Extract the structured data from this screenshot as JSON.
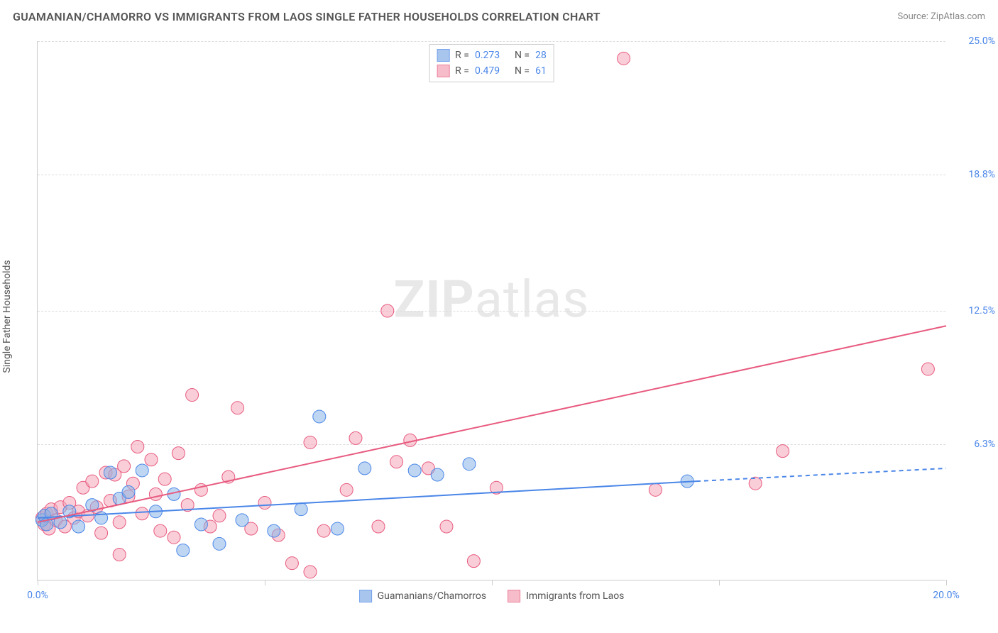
{
  "header": {
    "title": "GUAMANIAN/CHAMORRO VS IMMIGRANTS FROM LAOS SINGLE FATHER HOUSEHOLDS CORRELATION CHART",
    "source": "Source: ZipAtlas.com"
  },
  "chart": {
    "type": "scatter",
    "y_axis_label": "Single Father Households",
    "xlim": [
      0.0,
      20.0
    ],
    "ylim": [
      0.0,
      25.0
    ],
    "x_ticks": [
      0.0,
      5.0,
      10.0,
      15.0,
      20.0
    ],
    "x_tick_labels": [
      "0.0%",
      "",
      "",
      "",
      "20.0%"
    ],
    "y_ticks": [
      6.3,
      12.5,
      18.8,
      25.0
    ],
    "y_tick_labels": [
      "6.3%",
      "12.5%",
      "18.8%",
      "25.0%"
    ],
    "grid_color": "#dddddd",
    "axis_color": "#cccccc",
    "background_color": "#ffffff",
    "tick_label_color": "#4a86e8",
    "axis_label_color": "#555555",
    "title_color": "#555555",
    "watermark": {
      "text_bold": "ZIP",
      "text_rest": "atlas",
      "color": "#e8e8e8",
      "fontsize": 72
    }
  },
  "series": {
    "blue": {
      "label": "Guamanians/Chamorros",
      "R": "0.273",
      "N": "28",
      "fill": "#8bb4e8",
      "fill_opacity": 0.55,
      "stroke": "#4a86e8",
      "marker_radius": 9,
      "trend": {
        "x1": 0.0,
        "y1": 2.9,
        "x2": 14.5,
        "y2": 4.6,
        "x2_dash": 20.0,
        "y2_dash": 5.2,
        "color": "#4a86e8",
        "width": 2
      },
      "points": [
        [
          0.1,
          2.8
        ],
        [
          0.15,
          3.0
        ],
        [
          0.2,
          2.6
        ],
        [
          0.3,
          3.1
        ],
        [
          0.5,
          2.7
        ],
        [
          0.7,
          3.2
        ],
        [
          0.9,
          2.5
        ],
        [
          1.2,
          3.5
        ],
        [
          1.4,
          2.9
        ],
        [
          1.6,
          5.0
        ],
        [
          1.8,
          3.8
        ],
        [
          2.0,
          4.1
        ],
        [
          2.3,
          5.1
        ],
        [
          2.6,
          3.2
        ],
        [
          3.0,
          4.0
        ],
        [
          3.2,
          1.4
        ],
        [
          3.6,
          2.6
        ],
        [
          4.0,
          1.7
        ],
        [
          4.5,
          2.8
        ],
        [
          5.2,
          2.3
        ],
        [
          5.8,
          3.3
        ],
        [
          6.2,
          7.6
        ],
        [
          6.6,
          2.4
        ],
        [
          7.2,
          5.2
        ],
        [
          8.3,
          5.1
        ],
        [
          8.8,
          4.9
        ],
        [
          9.5,
          5.4
        ],
        [
          14.3,
          4.6
        ]
      ]
    },
    "pink": {
      "label": "Immigrants from Laos",
      "R": "0.479",
      "N": "61",
      "fill": "#f4a6b8",
      "fill_opacity": 0.55,
      "stroke": "#e85a7f",
      "marker_radius": 9,
      "trend": {
        "x1": 0.0,
        "y1": 2.7,
        "x2": 20.0,
        "y2": 11.8,
        "color": "#e85a7f",
        "width": 2
      },
      "points": [
        [
          0.1,
          2.9
        ],
        [
          0.15,
          2.6
        ],
        [
          0.2,
          3.1
        ],
        [
          0.25,
          2.4
        ],
        [
          0.3,
          3.3
        ],
        [
          0.4,
          2.8
        ],
        [
          0.5,
          3.4
        ],
        [
          0.6,
          2.5
        ],
        [
          0.7,
          3.6
        ],
        [
          0.8,
          2.9
        ],
        [
          0.9,
          3.2
        ],
        [
          1.0,
          4.3
        ],
        [
          1.1,
          3.0
        ],
        [
          1.2,
          4.6
        ],
        [
          1.3,
          3.4
        ],
        [
          1.4,
          2.2
        ],
        [
          1.5,
          5.0
        ],
        [
          1.6,
          3.7
        ],
        [
          1.7,
          4.9
        ],
        [
          1.8,
          2.7
        ],
        [
          1.8,
          1.2
        ],
        [
          1.9,
          5.3
        ],
        [
          2.0,
          3.9
        ],
        [
          2.1,
          4.5
        ],
        [
          2.2,
          6.2
        ],
        [
          2.3,
          3.1
        ],
        [
          2.5,
          5.6
        ],
        [
          2.6,
          4.0
        ],
        [
          2.7,
          2.3
        ],
        [
          2.8,
          4.7
        ],
        [
          3.0,
          2.0
        ],
        [
          3.1,
          5.9
        ],
        [
          3.3,
          3.5
        ],
        [
          3.4,
          8.6
        ],
        [
          3.6,
          4.2
        ],
        [
          3.8,
          2.5
        ],
        [
          4.0,
          3.0
        ],
        [
          4.2,
          4.8
        ],
        [
          4.4,
          8.0
        ],
        [
          4.7,
          2.4
        ],
        [
          5.0,
          3.6
        ],
        [
          5.3,
          2.1
        ],
        [
          5.6,
          0.8
        ],
        [
          6.0,
          6.4
        ],
        [
          6.0,
          0.4
        ],
        [
          6.3,
          2.3
        ],
        [
          6.8,
          4.2
        ],
        [
          7.0,
          6.6
        ],
        [
          7.5,
          2.5
        ],
        [
          7.7,
          12.5
        ],
        [
          7.9,
          5.5
        ],
        [
          8.2,
          6.5
        ],
        [
          8.6,
          5.2
        ],
        [
          9.0,
          2.5
        ],
        [
          9.6,
          0.9
        ],
        [
          10.1,
          4.3
        ],
        [
          12.9,
          24.2
        ],
        [
          13.6,
          4.2
        ],
        [
          15.8,
          4.5
        ],
        [
          16.4,
          6.0
        ],
        [
          19.6,
          9.8
        ]
      ]
    }
  },
  "legend_bottom": {
    "items": [
      {
        "swatch_fill": "#8bb4e8",
        "swatch_stroke": "#4a86e8",
        "label": "Guamanians/Chamorros"
      },
      {
        "swatch_fill": "#f4a6b8",
        "swatch_stroke": "#e85a7f",
        "label": "Immigrants from Laos"
      }
    ]
  }
}
